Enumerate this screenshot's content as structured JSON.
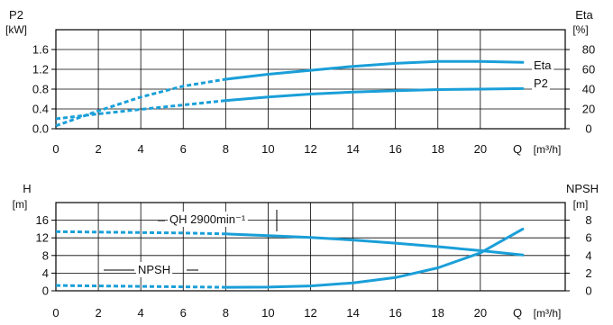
{
  "colors": {
    "curve": "#1a9fd8",
    "axis": "#000000",
    "grid": "#000000"
  },
  "chart_data": [
    {
      "type": "line",
      "x": {
        "label": "Q",
        "unit": "[m³/h]",
        "range": [
          0,
          24
        ],
        "ticks": [
          0,
          2,
          4,
          6,
          8,
          10,
          12,
          14,
          16,
          18,
          20
        ]
      },
      "y_left": {
        "label": "P2",
        "unit": "[kW]",
        "range": [
          0,
          2
        ],
        "ticks": [
          "0.0",
          "0.4",
          "0.8",
          "1.2",
          "1.6"
        ]
      },
      "y_right": {
        "label": "Eta",
        "unit": "[%]",
        "range": [
          0,
          100
        ],
        "ticks": [
          "0",
          "20",
          "40",
          "60",
          "80"
        ]
      },
      "grid": true,
      "series": [
        {
          "name": "Eta",
          "axis": "right",
          "solid_from": 8,
          "x": [
            0,
            2,
            4,
            6,
            8,
            10,
            12,
            14,
            16,
            18,
            20,
            22
          ],
          "y": [
            3,
            18,
            32,
            43,
            50,
            55,
            59,
            63,
            66,
            68,
            68,
            67
          ]
        },
        {
          "name": "P2",
          "axis": "left",
          "solid_from": 8,
          "x": [
            0,
            2,
            4,
            6,
            8,
            10,
            12,
            14,
            16,
            18,
            20,
            22
          ],
          "y": [
            0.2,
            0.3,
            0.39,
            0.48,
            0.57,
            0.64,
            0.7,
            0.74,
            0.77,
            0.79,
            0.8,
            0.81
          ]
        }
      ]
    },
    {
      "type": "line",
      "x": {
        "label": "Q",
        "unit": "[m³/h]",
        "range": [
          0,
          24
        ],
        "ticks": [
          0,
          2,
          4,
          6,
          8,
          10,
          12,
          14,
          16,
          18,
          20
        ]
      },
      "y_left": {
        "label": "H",
        "unit": "[m]",
        "range": [
          0,
          20
        ],
        "ticks": [
          "0",
          "4",
          "8",
          "12",
          "16"
        ]
      },
      "y_right": {
        "label": "NPSH",
        "unit": "[m]",
        "range": [
          0,
          10
        ],
        "ticks": [
          "0",
          "2",
          "4",
          "6",
          "8"
        ]
      },
      "grid": true,
      "series": [
        {
          "name": "QH 2900min⁻¹",
          "axis": "left",
          "solid_from": 8,
          "x": [
            0,
            2,
            4,
            6,
            8,
            10,
            12,
            14,
            16,
            18,
            20,
            22
          ],
          "y": [
            13.4,
            13.3,
            13.2,
            13.1,
            12.9,
            12.5,
            12.1,
            11.5,
            10.8,
            10.0,
            9.1,
            8.1
          ]
        },
        {
          "name": "NPSH",
          "axis": "right",
          "solid_from": 8,
          "x": [
            0,
            2,
            4,
            6,
            8,
            10,
            12,
            14,
            16,
            18,
            20,
            22
          ],
          "y": [
            0.6,
            0.55,
            0.5,
            0.45,
            0.4,
            0.42,
            0.55,
            0.9,
            1.5,
            2.6,
            4.3,
            7.0
          ]
        }
      ]
    }
  ]
}
